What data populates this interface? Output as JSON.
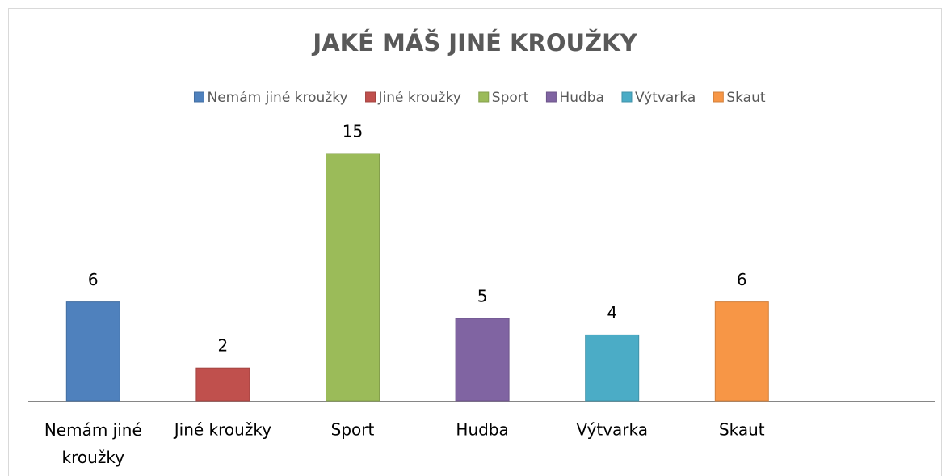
{
  "chart_data": {
    "type": "bar",
    "title": "JAKÉ MÁŠ JINÉ KROUŽKY",
    "categories": [
      "Nemám jiné kroužky",
      "Jiné kroužky",
      "Sport",
      "Hudba",
      "Výtvarka",
      "Skaut"
    ],
    "values": [
      6,
      2,
      15,
      5,
      4,
      6
    ],
    "colors": [
      "#4f81bd",
      "#c0504d",
      "#9bbb59",
      "#8064a2",
      "#4bacc6",
      "#f79646"
    ],
    "legend": "top"
  }
}
